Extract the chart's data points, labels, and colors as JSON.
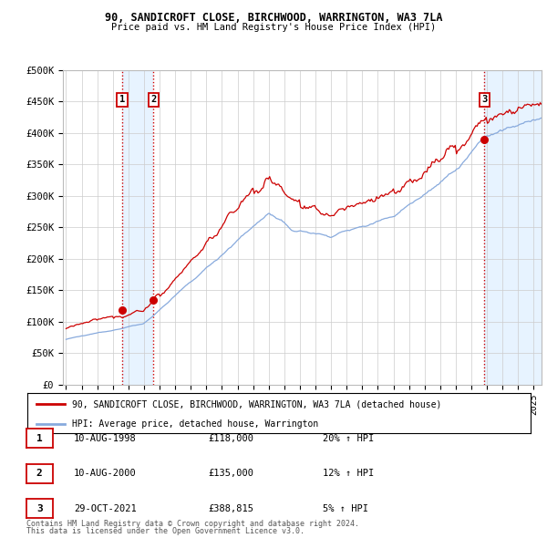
{
  "title1": "90, SANDICROFT CLOSE, BIRCHWOOD, WARRINGTON, WA3 7LA",
  "title2": "Price paid vs. HM Land Registry's House Price Index (HPI)",
  "ylabel_ticks": [
    "£0",
    "£50K",
    "£100K",
    "£150K",
    "£200K",
    "£250K",
    "£300K",
    "£350K",
    "£400K",
    "£450K",
    "£500K"
  ],
  "ytick_values": [
    0,
    50000,
    100000,
    150000,
    200000,
    250000,
    300000,
    350000,
    400000,
    450000,
    500000
  ],
  "xlim_start": 1994.8,
  "xlim_end": 2025.5,
  "ylim_min": 0,
  "ylim_max": 500000,
  "sale_dates": [
    1998.61,
    2000.61,
    2021.83
  ],
  "sale_prices": [
    118000,
    135000,
    388815
  ],
  "sale_labels": [
    "1",
    "2",
    "3"
  ],
  "hpi_color": "#88aadd",
  "price_color": "#cc0000",
  "vline_color": "#cc0000",
  "shade_color": "#ddeeff",
  "legend_label_red": "90, SANDICROFT CLOSE, BIRCHWOOD, WARRINGTON, WA3 7LA (detached house)",
  "legend_label_blue": "HPI: Average price, detached house, Warrington",
  "table_entries": [
    {
      "num": "1",
      "date": "10-AUG-1998",
      "price": "£118,000",
      "change": "20% ↑ HPI"
    },
    {
      "num": "2",
      "date": "10-AUG-2000",
      "price": "£135,000",
      "change": "12% ↑ HPI"
    },
    {
      "num": "3",
      "date": "29-OCT-2021",
      "price": "£388,815",
      "change": "5% ↑ HPI"
    }
  ],
  "footer1": "Contains HM Land Registry data © Crown copyright and database right 2024.",
  "footer2": "This data is licensed under the Open Government Licence v3.0.",
  "background_color": "#ffffff",
  "grid_color": "#cccccc"
}
